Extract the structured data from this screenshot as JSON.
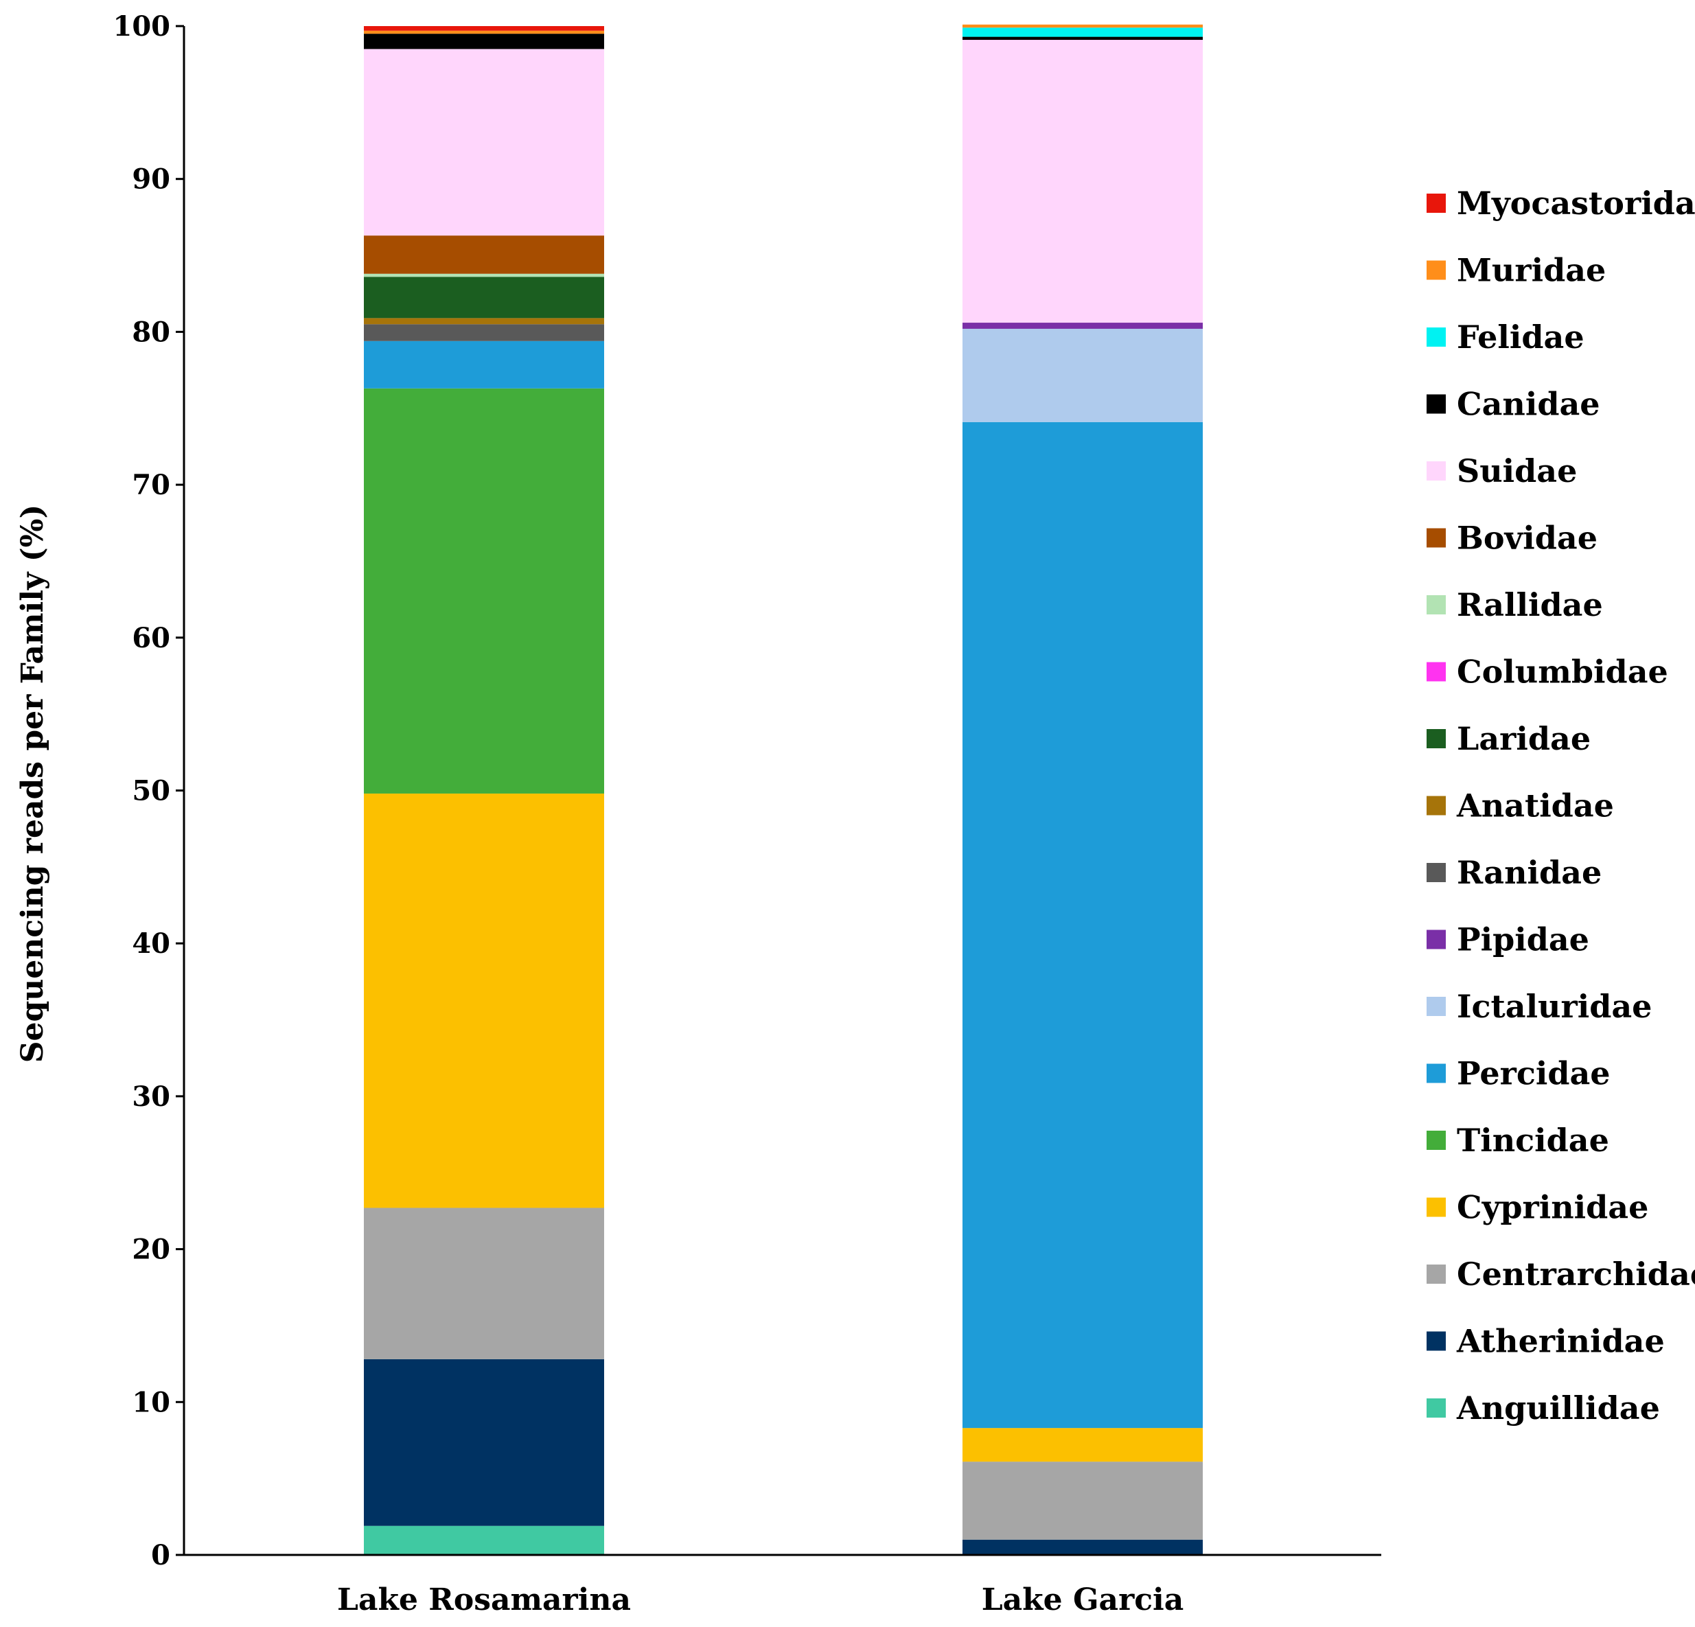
{
  "chart_data": {
    "type": "bar",
    "stacked": true,
    "title": "",
    "xlabel": "",
    "ylabel": "Sequencing reads per Family (%)",
    "ylim": [
      0,
      100
    ],
    "yticks": [
      "0",
      "10",
      "20",
      "30",
      "40",
      "50",
      "60",
      "70",
      "80",
      "90",
      "100"
    ],
    "categories": [
      "Lake Rosamarina",
      "Lake Garcia"
    ],
    "legend_position": "right",
    "series": [
      {
        "name": "Anguillidae",
        "color": "#40c9a2",
        "values": [
          1.9,
          0.0
        ]
      },
      {
        "name": "Atherinidae",
        "color": "#003262",
        "values": [
          10.9,
          1.0
        ]
      },
      {
        "name": "Centrarchidae",
        "color": "#a6a6a6",
        "values": [
          9.9,
          5.1
        ]
      },
      {
        "name": "Cyprinidae",
        "color": "#fcc000",
        "values": [
          27.1,
          2.2
        ]
      },
      {
        "name": "Tincidae",
        "color": "#43ad3a",
        "values": [
          26.5,
          0.0
        ]
      },
      {
        "name": "Percidae",
        "color": "#1e9cd8",
        "values": [
          3.1,
          65.8
        ]
      },
      {
        "name": "Ictaluridae",
        "color": "#afcbed",
        "values": [
          0.0,
          6.1
        ]
      },
      {
        "name": "Pipidae",
        "color": "#7a2fa7",
        "values": [
          0.0,
          0.4
        ]
      },
      {
        "name": "Ranidae",
        "color": "#595959",
        "values": [
          1.1,
          0.0
        ]
      },
      {
        "name": "Anatidae",
        "color": "#a6740a",
        "values": [
          0.4,
          0.0
        ]
      },
      {
        "name": "Laridae",
        "color": "#1b5e20",
        "values": [
          2.7,
          0.0
        ]
      },
      {
        "name": "Columbidae",
        "color": "#ff33f0",
        "values": [
          0.0,
          0.0
        ]
      },
      {
        "name": "Rallidae",
        "color": "#b2e3b3",
        "values": [
          0.2,
          0.0
        ]
      },
      {
        "name": "Bovidae",
        "color": "#a64d00",
        "values": [
          2.5,
          0.0
        ]
      },
      {
        "name": "Suidae",
        "color": "#ffd6fc",
        "values": [
          12.2,
          18.5
        ]
      },
      {
        "name": "Canidae",
        "color": "#000000",
        "values": [
          1.0,
          0.2
        ]
      },
      {
        "name": "Felidae",
        "color": "#00f2f2",
        "values": [
          0.0,
          0.6
        ]
      },
      {
        "name": "Muridae",
        "color": "#ff8e1a",
        "values": [
          0.2,
          0.2
        ]
      },
      {
        "name": "Myocastoridae",
        "color": "#e8160b",
        "values": [
          0.3,
          0.0
        ]
      }
    ]
  }
}
